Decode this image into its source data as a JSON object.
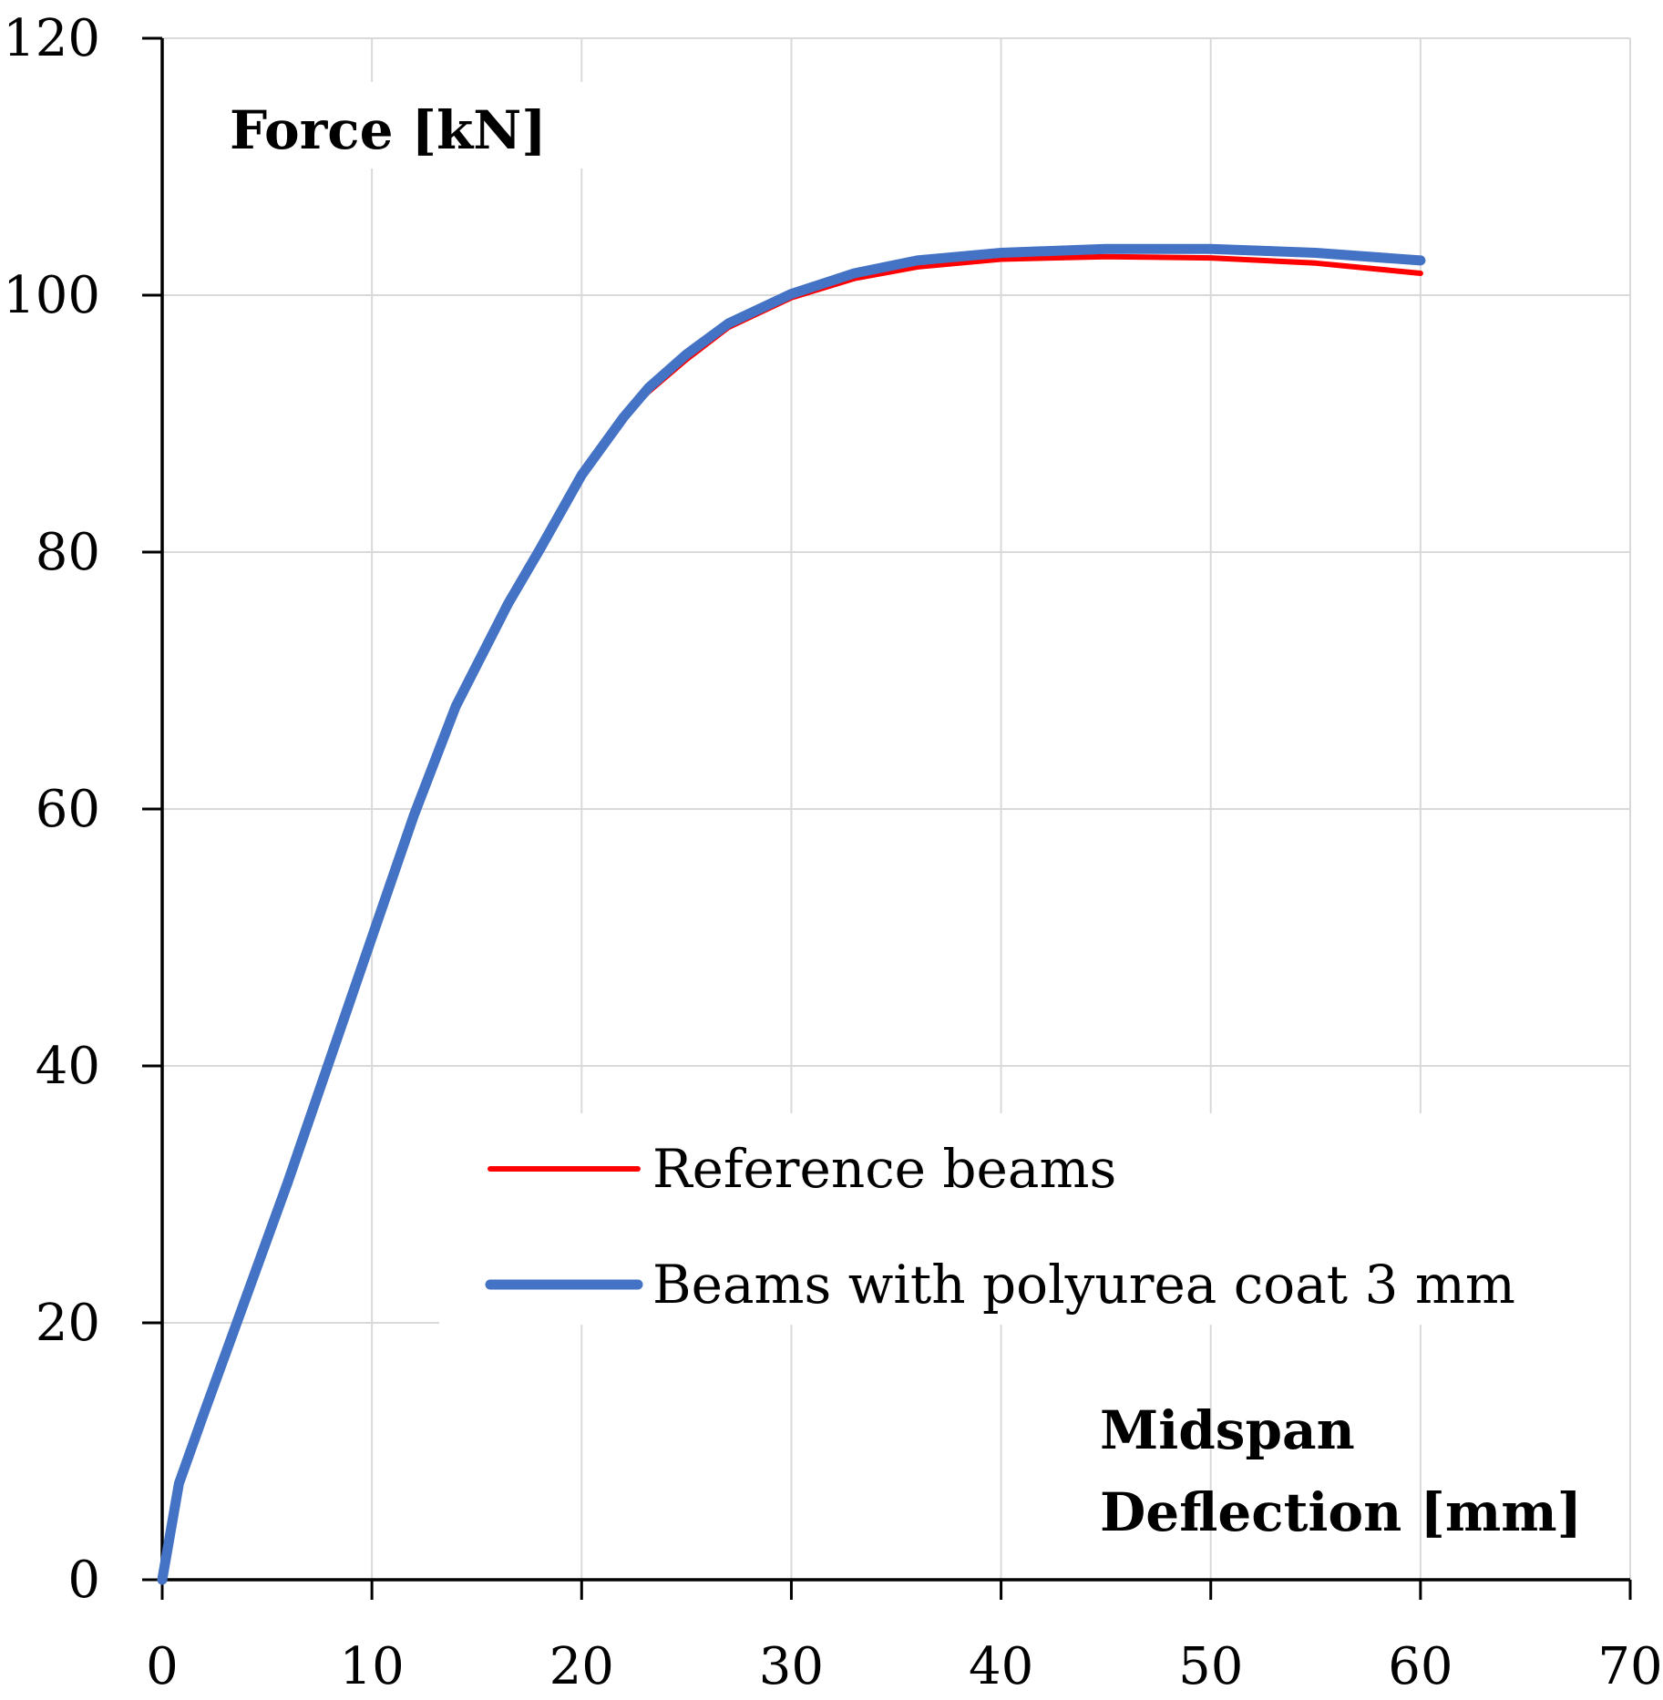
{
  "chart_data": {
    "type": "line",
    "title": "",
    "ylabel": "Force [kN]",
    "xlabel_lines": [
      "Midspan",
      "Deflection [mm]"
    ],
    "xlim": [
      0,
      70
    ],
    "ylim": [
      0,
      120
    ],
    "x_ticks": [
      0,
      10,
      20,
      30,
      40,
      50,
      60,
      70
    ],
    "y_ticks": [
      0,
      20,
      40,
      60,
      80,
      100,
      120
    ],
    "grid": true,
    "legend_position": "center-right",
    "series": [
      {
        "name": "Reference beams",
        "color": "#ff0000",
        "x": [
          0,
          0.8,
          2,
          4,
          6,
          8,
          10,
          12,
          14,
          16.5,
          18,
          20,
          22,
          23.2,
          25,
          27,
          30,
          33,
          36,
          40,
          45,
          50,
          55,
          60
        ],
        "y": [
          0,
          7.5,
          13,
          22,
          31,
          40.5,
          50,
          59.5,
          68,
          76,
          80.2,
          86,
          90.5,
          92.5,
          95,
          97.5,
          99.8,
          101.3,
          102.2,
          102.8,
          103.0,
          102.9,
          102.5,
          101.7
        ]
      },
      {
        "name": "Beams with polyurea coat 3 mm",
        "color": "#4472c4",
        "x": [
          0,
          0.8,
          2,
          4,
          6,
          8,
          10,
          12,
          14,
          16.5,
          18,
          20,
          22,
          23.2,
          25,
          27,
          30,
          33,
          36,
          40,
          45,
          50,
          55,
          60
        ],
        "y": [
          0,
          7.5,
          13,
          22,
          31,
          40.5,
          50,
          59.5,
          68,
          76,
          80.2,
          86,
          90.5,
          92.8,
          95.4,
          97.8,
          100.1,
          101.7,
          102.7,
          103.3,
          103.6,
          103.6,
          103.3,
          102.7
        ]
      }
    ]
  }
}
